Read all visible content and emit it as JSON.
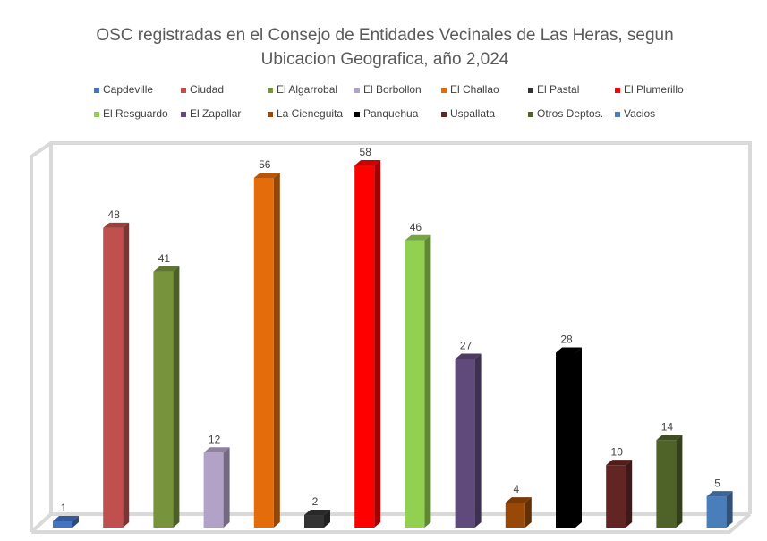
{
  "chart_data": {
    "type": "bar",
    "title": "OSC registradas en el Consejo de Entidades Vecinales de Las Heras, segun Ubicacion Geografica, año 2,024",
    "series": [
      {
        "name": "Capdeville",
        "color": "#4472c4",
        "values": [
          1
        ]
      },
      {
        "name": "Ciudad",
        "color": "#c0504d",
        "values": [
          48
        ]
      },
      {
        "name": "El Algarrobal",
        "color": "#77933c",
        "values": [
          41
        ]
      },
      {
        "name": "El Borbollon",
        "color": "#b3a2c7",
        "values": [
          12
        ]
      },
      {
        "name": "El Challao",
        "color": "#e46c0a",
        "values": [
          56
        ]
      },
      {
        "name": "El Pastal",
        "color": "#333333",
        "values": [
          2
        ]
      },
      {
        "name": "El Plumerillo",
        "color": "#ff0000",
        "values": [
          58
        ]
      },
      {
        "name": "El Resguardo",
        "color": "#92d050",
        "values": [
          46
        ]
      },
      {
        "name": "El Zapallar",
        "color": "#604a7b",
        "values": [
          27
        ]
      },
      {
        "name": "La Cieneguita",
        "color": "#984807",
        "values": [
          4
        ]
      },
      {
        "name": "Panquehua",
        "color": "#000000",
        "values": [
          28
        ]
      },
      {
        "name": "Uspallata",
        "color": "#632523",
        "values": [
          10
        ]
      },
      {
        "name": "Otros Deptos.",
        "color": "#4f6228",
        "values": [
          14
        ]
      },
      {
        "name": "Vacios",
        "color": "#4a7ebb",
        "values": [
          5
        ]
      }
    ],
    "legend": "top"
  }
}
